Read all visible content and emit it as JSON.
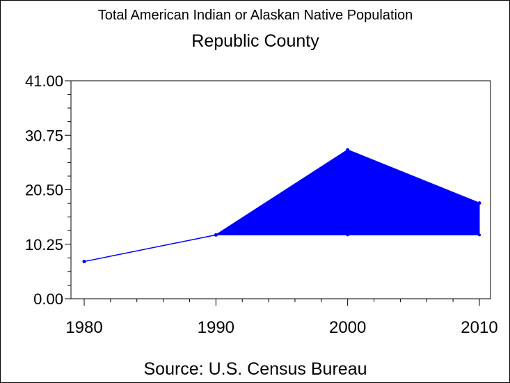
{
  "chart_data": {
    "type": "area",
    "title": "Total American Indian or Alaskan Native Population",
    "subtitle": "Republic County",
    "xlabel": "",
    "ylabel": "",
    "x": [
      1980,
      1990,
      2000,
      2010
    ],
    "xticks": [
      "1980",
      "1990",
      "2000",
      "2010"
    ],
    "yticks": [
      "0.00",
      "10.25",
      "20.50",
      "30.75",
      "41.00"
    ],
    "ylim": [
      0,
      41
    ],
    "xlim": [
      1980,
      2010
    ],
    "series": [
      {
        "values": [
          7,
          12,
          28,
          18
        ]
      }
    ],
    "fill_baseline": 12,
    "fill_from_x": 1990,
    "source": "Source: U.S. Census Bureau",
    "colors": {
      "series": "#0000ff",
      "axis": "#000000",
      "background": "#ffffff"
    },
    "grid": false,
    "legend": "none"
  }
}
